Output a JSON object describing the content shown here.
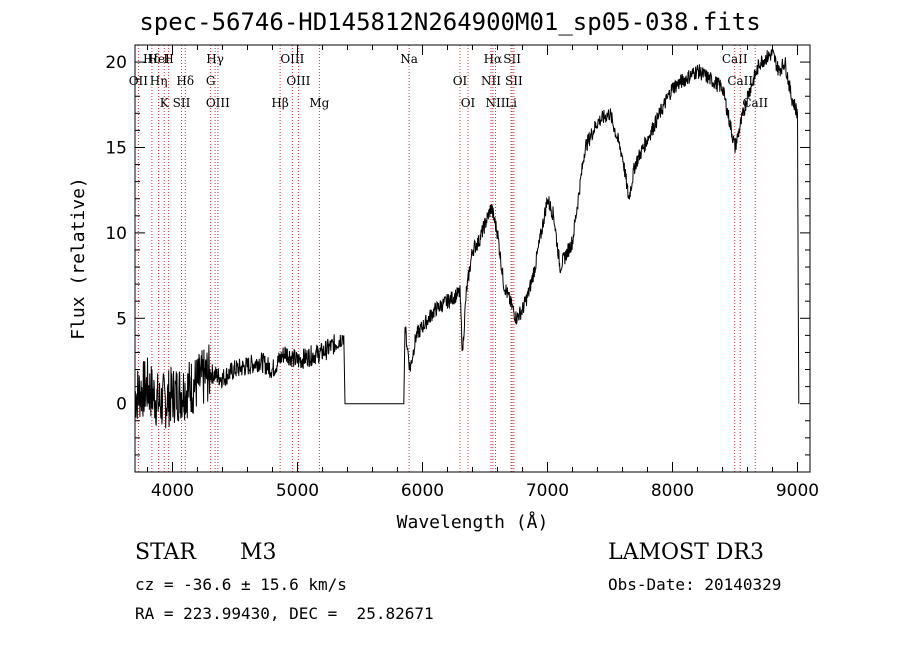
{
  "chart_data": {
    "type": "line",
    "title": "spec-56746-HD145812N264900M01_sp05-038.fits",
    "xlabel": "Wavelength (Å)",
    "ylabel": "Flux (relative)",
    "xlim": [
      3700,
      9100
    ],
    "ylim": [
      -4,
      21
    ],
    "xticks": [
      4000,
      5000,
      6000,
      7000,
      8000,
      9000
    ],
    "yticks": [
      0,
      5,
      10,
      15,
      20
    ],
    "series": [
      {
        "name": "flux",
        "x": [
          3700,
          3800,
          3900,
          4000,
          4100,
          4200,
          4300,
          4400,
          4500,
          4600,
          4700,
          4800,
          4900,
          5000,
          5100,
          5200,
          5300,
          5370,
          5380,
          5850,
          5860,
          5900,
          5950,
          6000,
          6100,
          6200,
          6300,
          6320,
          6350,
          6400,
          6450,
          6500,
          6550,
          6600,
          6650,
          6700,
          6750,
          6800,
          6850,
          6900,
          7000,
          7050,
          7100,
          7200,
          7300,
          7400,
          7500,
          7600,
          7650,
          7700,
          7800,
          7900,
          8000,
          8100,
          8200,
          8300,
          8400,
          8500,
          8550,
          8600,
          8650,
          8700,
          8800,
          8850,
          8900,
          8950,
          9000,
          9010
        ],
        "y": [
          0.5,
          1.0,
          0.0,
          0.5,
          0.8,
          1.2,
          1.8,
          1.5,
          2.0,
          2.2,
          2.5,
          2.0,
          3.0,
          2.5,
          2.8,
          3.0,
          3.5,
          4.0,
          0,
          0,
          4.5,
          2.0,
          4.0,
          4.5,
          5.5,
          6.0,
          6.5,
          3.0,
          6.5,
          9.0,
          9.5,
          10.5,
          11.5,
          10.0,
          7.0,
          6.0,
          5.0,
          5.5,
          6.5,
          8.0,
          12.0,
          11.0,
          8.0,
          9.5,
          15.0,
          16.5,
          17.0,
          14.5,
          12.0,
          14.0,
          15.5,
          17.0,
          18.5,
          19.0,
          19.5,
          19.0,
          18.5,
          15.0,
          16.5,
          18.0,
          19.0,
          20.0,
          20.5,
          19.5,
          20.0,
          18.0,
          17.0,
          0
        ]
      }
    ],
    "line_markers": [
      {
        "label": "Hδ",
        "wavelength": 3835
      },
      {
        "label": "OII",
        "wavelength": 3727
      },
      {
        "label": "K",
        "wavelength": 3934
      },
      {
        "label": "HeI",
        "wavelength": 3889
      },
      {
        "label": "Hη",
        "wavelength": 3889
      },
      {
        "label": "SII",
        "wavelength": 4072
      },
      {
        "label": "H",
        "wavelength": 3969
      },
      {
        "label": "Hδ",
        "wavelength": 4102
      },
      {
        "label": "OIII",
        "wavelength": 4363
      },
      {
        "label": "Hγ",
        "wavelength": 4341
      },
      {
        "label": "G",
        "wavelength": 4305
      },
      {
        "label": "Hβ",
        "wavelength": 4861
      },
      {
        "label": "OIII",
        "wavelength": 4959
      },
      {
        "label": "OIII",
        "wavelength": 5007
      },
      {
        "label": "Mg",
        "wavelength": 5175
      },
      {
        "label": "Na",
        "wavelength": 5893
      },
      {
        "label": "OI",
        "wavelength": 6300
      },
      {
        "label": "OI",
        "wavelength": 6364
      },
      {
        "label": "Hα",
        "wavelength": 6563
      },
      {
        "label": "NII",
        "wavelength": 6548
      },
      {
        "label": "NII",
        "wavelength": 6584
      },
      {
        "label": "SII",
        "wavelength": 6717
      },
      {
        "label": "SII",
        "wavelength": 6731
      },
      {
        "label": "Li",
        "wavelength": 6708
      },
      {
        "label": "CaII",
        "wavelength": 8498
      },
      {
        "label": "CaII",
        "wavelength": 8542
      },
      {
        "label": "CaII",
        "wavelength": 8662
      }
    ]
  },
  "info": {
    "object_class": "STAR",
    "subclass": "M3",
    "redshift": "cz = -36.6 ± 15.6 km/s",
    "coords": "RA = 223.99430, DEC =  25.82671",
    "survey": "LAMOST DR3",
    "obs_date": "Obs-Date: 20140329"
  }
}
